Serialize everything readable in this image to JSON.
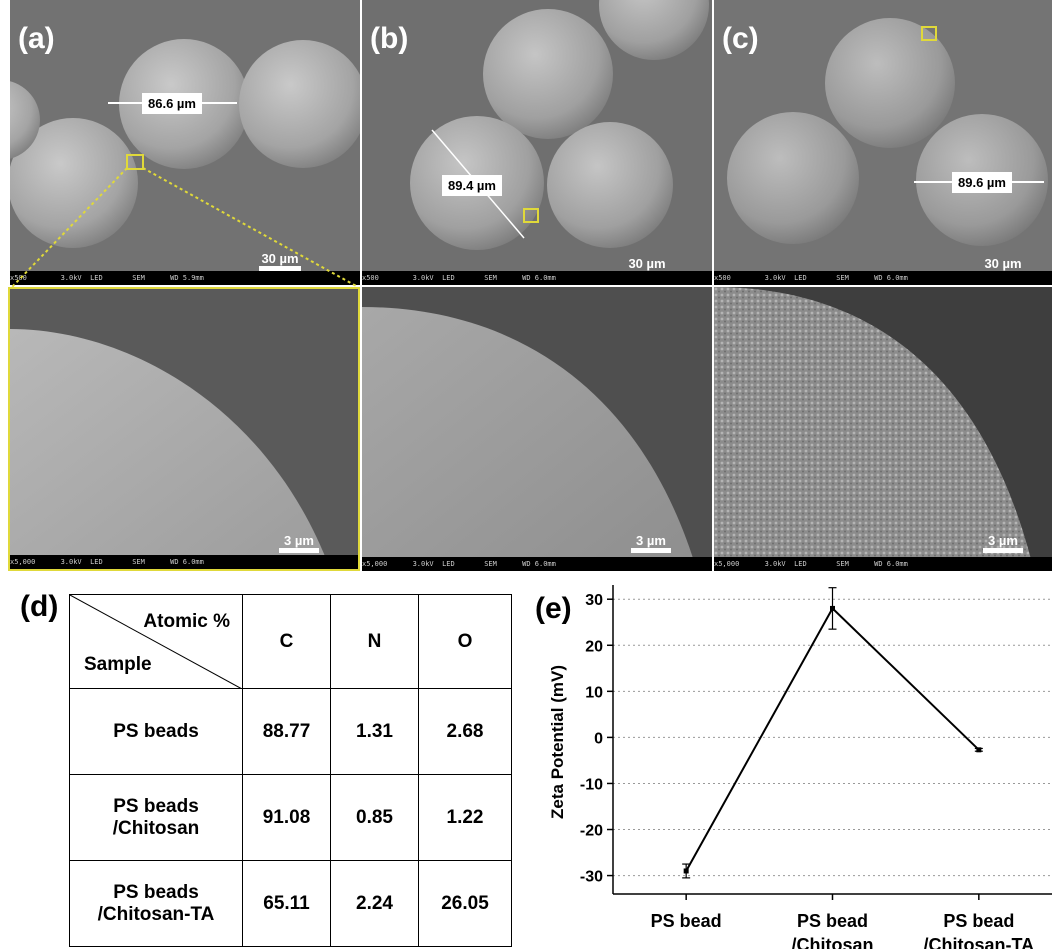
{
  "panels": {
    "a": {
      "label": "(a)",
      "measure": "86.6 µm",
      "scale_top": "30 µm",
      "scale_bottom": "3 µm",
      "info_top": "x500        3.0kV  LED       SEM      WD 5.9mm",
      "info_bottom": "x5,000      3.0kV  LED       SEM      WD 6.0mm"
    },
    "b": {
      "label": "(b)",
      "measure": "89.4 µm",
      "scale_top": "30 µm",
      "scale_bottom": "3 µm",
      "info_top": "x500        3.0kV  LED       SEM      WD 6.0mm",
      "info_bottom": "x5,000      3.0kV  LED       SEM      WD 6.0mm"
    },
    "c": {
      "label": "(c)",
      "measure": "89.6 µm",
      "scale_top": "30 µm",
      "scale_bottom": "3 µm",
      "info_top": "x500        3.0kV  LED       SEM      WD 6.0mm",
      "info_bottom": "x5,000      3.0kV  LED       SEM      WD 6.0mm"
    },
    "d": {
      "label": "(d)"
    },
    "e": {
      "label": "(e)"
    }
  },
  "table": {
    "header_diag_top": "Atomic %",
    "header_diag_bottom": "Sample",
    "columns": [
      "C",
      "N",
      "O"
    ],
    "rows": [
      {
        "sample_line1": "PS beads",
        "sample_line2": "",
        "values": [
          "88.77",
          "1.31",
          "2.68"
        ]
      },
      {
        "sample_line1": "PS beads",
        "sample_line2": "/Chitosan",
        "values": [
          "91.08",
          "0.85",
          "1.22"
        ]
      },
      {
        "sample_line1": "PS beads",
        "sample_line2": "/Chitosan-TA",
        "values": [
          "65.11",
          "2.24",
          "26.05"
        ]
      }
    ]
  },
  "chart_data": {
    "type": "line",
    "title": "",
    "xlabel": "",
    "ylabel": "Zeta Potential (mV)",
    "categories": [
      [
        "PS bead"
      ],
      [
        "PS bead",
        "/Chitosan"
      ],
      [
        "PS bead",
        "/Chitosan-TA"
      ]
    ],
    "series": [
      {
        "values": [
          -29,
          28,
          -2.7
        ],
        "errors": [
          1.5,
          4.5,
          0.3
        ]
      }
    ],
    "yticks": [
      30,
      20,
      10,
      0,
      -10,
      -20,
      -30
    ],
    "ylim": [
      -34,
      32
    ],
    "grid": "horizontal dotted"
  },
  "colors": {
    "highlight": "#e0d93a",
    "sem_bg": "#6a6a6a"
  }
}
